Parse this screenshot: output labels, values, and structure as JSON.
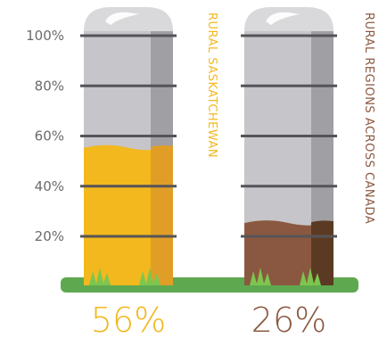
{
  "chart_data": {
    "type": "bar",
    "categories": [
      "RURAL SASKATCHEWAN",
      "RURAL REGIONS ACROSS CANADA"
    ],
    "values": [
      56,
      26
    ],
    "value_labels": [
      "56%",
      "26%"
    ],
    "ylim": [
      0,
      100
    ],
    "yticks": [
      {
        "value": 20,
        "label": "20%"
      },
      {
        "value": 40,
        "label": "40%"
      },
      {
        "value": 60,
        "label": "60%"
      },
      {
        "value": 80,
        "label": "80%"
      },
      {
        "value": 100,
        "label": "100%"
      }
    ],
    "colors": [
      "#f2b81d",
      "#8a5840"
    ],
    "style": "grain silo fill"
  }
}
